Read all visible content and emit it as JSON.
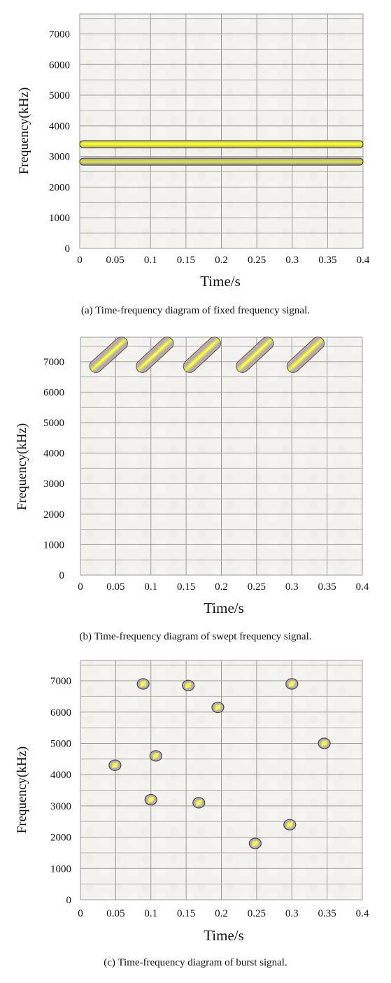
{
  "chart_data": [
    {
      "type": "scatter",
      "subtype": "spectrogram",
      "caption": "(a)  Time-frequency diagram of fixed frequency signal.",
      "xlabel": "Time/s",
      "ylabel": "Frequency(kHz)",
      "x_ticks": [
        "0",
        "0.05",
        "0.1",
        "0.15",
        "0.2",
        "0.25",
        "0.3",
        "0.35",
        "0.4"
      ],
      "y_ticks": [
        "0",
        "1000",
        "2000",
        "3000",
        "4000",
        "5000",
        "6000",
        "7000"
      ],
      "xlim": [
        0,
        0.4
      ],
      "ylim": [
        0,
        7000
      ],
      "grid": true,
      "signals": [
        {
          "shape": "band",
          "t_start": 0.0,
          "t_end": 0.4,
          "f_start": 3400,
          "f_end": 3400
        },
        {
          "shape": "band",
          "t_start": 0.0,
          "t_end": 0.4,
          "f_start": 2830,
          "f_end": 2830
        }
      ]
    },
    {
      "type": "scatter",
      "subtype": "spectrogram",
      "caption": "(b)  Time-frequency diagram of swept frequency signal.",
      "xlabel": "Time/s",
      "ylabel": "Frequency(kHz)",
      "x_ticks": [
        "0",
        "0.05",
        "0.1",
        "0.15",
        "0.2",
        "0.25",
        "0.3",
        "0.35",
        "0.4"
      ],
      "y_ticks": [
        "0",
        "1000",
        "2000",
        "3000",
        "4000",
        "5000",
        "6000",
        "7000"
      ],
      "xlim": [
        0,
        0.4
      ],
      "ylim": [
        0,
        7000
      ],
      "grid": true,
      "signals": [
        {
          "shape": "sweep",
          "t_start": 0.022,
          "t_end": 0.058,
          "f_start": 6850,
          "f_end": 7600
        },
        {
          "shape": "sweep",
          "t_start": 0.088,
          "t_end": 0.123,
          "f_start": 6850,
          "f_end": 7600
        },
        {
          "shape": "sweep",
          "t_start": 0.155,
          "t_end": 0.19,
          "f_start": 6850,
          "f_end": 7600
        },
        {
          "shape": "sweep",
          "t_start": 0.23,
          "t_end": 0.265,
          "f_start": 6850,
          "f_end": 7600
        },
        {
          "shape": "sweep",
          "t_start": 0.302,
          "t_end": 0.337,
          "f_start": 6850,
          "f_end": 7600
        }
      ]
    },
    {
      "type": "scatter",
      "subtype": "spectrogram",
      "caption": "(c)  Time-frequency diagram of burst signal.",
      "xlabel": "Time/s",
      "ylabel": "Frequency(kHz)",
      "x_ticks": [
        "0",
        "0.05",
        "0.1",
        "0.15",
        "0.2",
        "0.25",
        "0.3",
        "0.35",
        "0.4"
      ],
      "y_ticks": [
        "0",
        "1000",
        "2000",
        "3000",
        "4000",
        "5000",
        "6000",
        "7000"
      ],
      "xlim": [
        0,
        0.4
      ],
      "ylim": [
        0,
        7000
      ],
      "grid": true,
      "signals": [
        {
          "shape": "burst",
          "t": 0.049,
          "f": 4300
        },
        {
          "shape": "burst",
          "t": 0.089,
          "f": 6900
        },
        {
          "shape": "burst",
          "t": 0.1,
          "f": 3200
        },
        {
          "shape": "burst",
          "t": 0.107,
          "f": 4600
        },
        {
          "shape": "burst",
          "t": 0.153,
          "f": 6850
        },
        {
          "shape": "burst",
          "t": 0.168,
          "f": 3100
        },
        {
          "shape": "burst",
          "t": 0.195,
          "f": 6150
        },
        {
          "shape": "burst",
          "t": 0.248,
          "f": 1800
        },
        {
          "shape": "burst",
          "t": 0.297,
          "f": 2400
        },
        {
          "shape": "burst",
          "t": 0.3,
          "f": 6900
        },
        {
          "shape": "burst",
          "t": 0.346,
          "f": 5000
        }
      ]
    }
  ]
}
